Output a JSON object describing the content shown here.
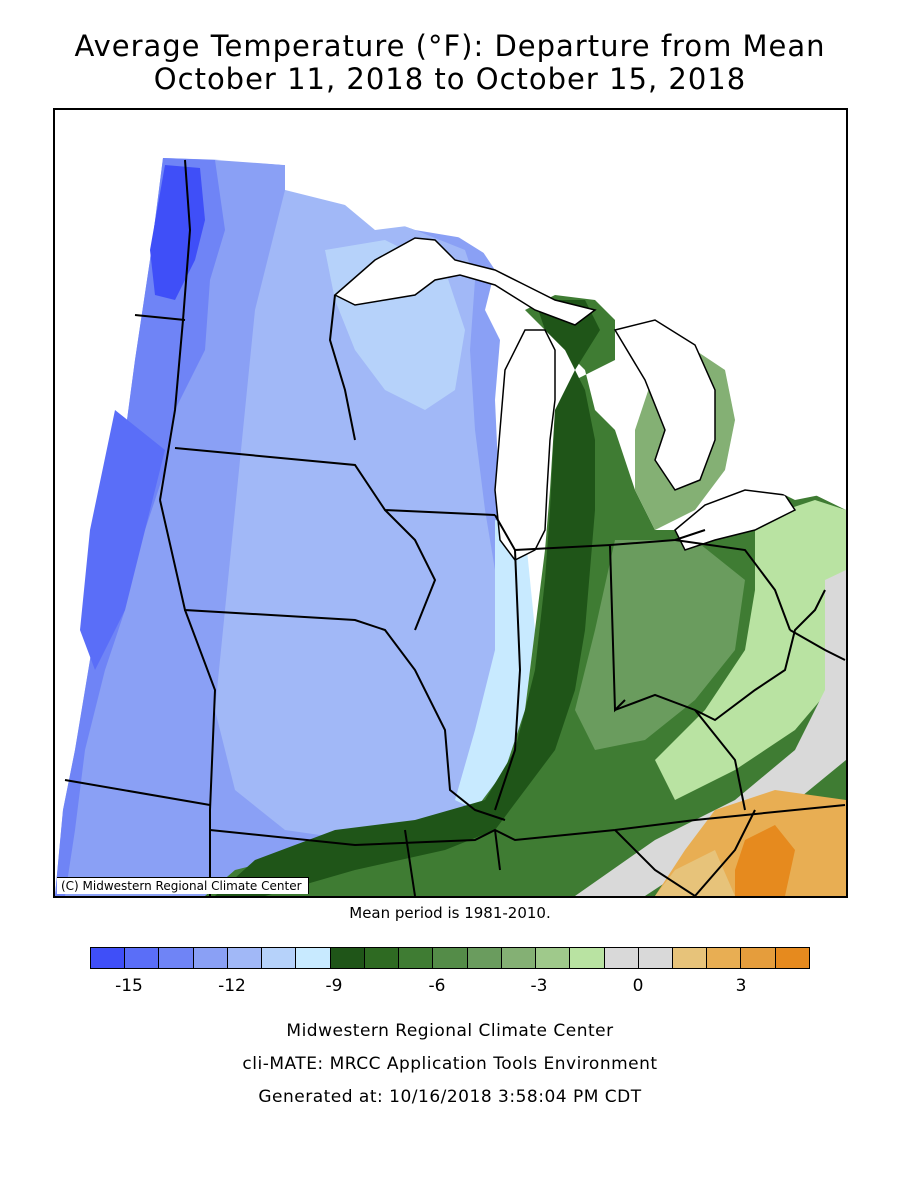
{
  "title": {
    "line1": "Average Temperature (°F): Departure from Mean",
    "line2": "October 11, 2018 to October 15, 2018"
  },
  "map": {
    "copyright": "(C) Midwestern Regional Climate Center",
    "mean_period": "Mean period is 1981-2010."
  },
  "legend": {
    "colors": [
      "#3f4ff8",
      "#5a6ef8",
      "#6f84f6",
      "#8aa0f5",
      "#a1b8f7",
      "#b6d2fa",
      "#c8eaff",
      "#1f5518",
      "#2e6a22",
      "#3f7c33",
      "#548c48",
      "#6a9c5e",
      "#84b074",
      "#9fc98b",
      "#b9e3a2",
      "#d9d9d9",
      "#d9d9d9",
      "#e7c37a",
      "#e8ae53",
      "#e59d3c",
      "#e68a1e"
    ],
    "tick_labels": [
      "-15",
      "-12",
      "-9",
      "-6",
      "-3",
      "0",
      "3"
    ]
  },
  "footer": {
    "line1": "Midwestern Regional Climate Center",
    "line2": "cli-MATE: MRCC Application Tools Environment",
    "line3": "Generated at: 10/16/2018 3:58:04 PM CDT"
  }
}
